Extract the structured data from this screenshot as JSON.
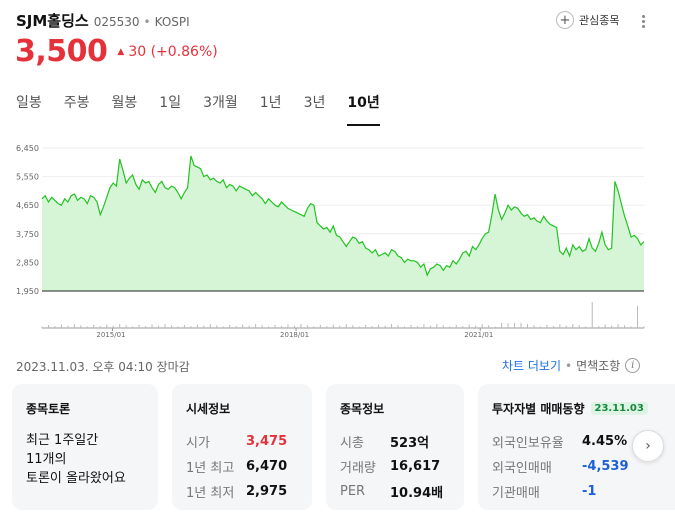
{
  "header": {
    "stock_name": "SJM홀딩스",
    "stock_code": "025530",
    "separator": "•",
    "market": "KOSPI",
    "watch_label": "관심종목"
  },
  "price": {
    "current": "3,500",
    "change_text": "30 (+0.86%)",
    "up_color": "#e5323a"
  },
  "tabs": [
    {
      "label": "일봉",
      "active": false
    },
    {
      "label": "주봉",
      "active": false
    },
    {
      "label": "월봉",
      "active": false
    },
    {
      "label": "1일",
      "active": false
    },
    {
      "label": "3개월",
      "active": false
    },
    {
      "label": "1년",
      "active": false
    },
    {
      "label": "3년",
      "active": false
    },
    {
      "label": "10년",
      "active": true
    }
  ],
  "chart_data": {
    "type": "area",
    "y_ticks": [
      "6,450",
      "5,550",
      "4,650",
      "3,750",
      "2,850",
      "1,950"
    ],
    "y_tick_values": [
      6450,
      5550,
      4650,
      3750,
      2850,
      1950
    ],
    "ylim": [
      1950,
      6450
    ],
    "x_ticks": [
      "2015/01",
      "2018/01",
      "2021/01"
    ],
    "x_tick_positions": [
      0.117,
      0.422,
      0.728
    ],
    "line_color": "#22c322",
    "fill_color": "#d6f5d6",
    "values": [
      4850,
      4950,
      4750,
      4900,
      4800,
      4700,
      4650,
      4850,
      4750,
      4950,
      5000,
      4800,
      4900,
      4850,
      4700,
      4950,
      4900,
      4750,
      4350,
      4600,
      4900,
      5200,
      5350,
      5250,
      6100,
      5750,
      5350,
      5500,
      5600,
      5300,
      5150,
      5450,
      5350,
      5400,
      5200,
      5050,
      5300,
      5400,
      5200,
      5150,
      5250,
      5200,
      5050,
      4850,
      5050,
      5200,
      6200,
      5900,
      5850,
      5800,
      5550,
      5600,
      5450,
      5500,
      5400,
      5350,
      5450,
      5200,
      5300,
      5250,
      5100,
      5250,
      5200,
      5150,
      5100,
      4950,
      5050,
      4950,
      4850,
      4700,
      4850,
      4750,
      4650,
      4600,
      4750,
      4650,
      4550,
      4500,
      4450,
      4400,
      4350,
      4300,
      4550,
      4700,
      4650,
      4100,
      4000,
      3900,
      3950,
      3800,
      4000,
      3700,
      3650,
      3500,
      3350,
      3500,
      3650,
      3600,
      3450,
      3500,
      3300,
      3250,
      3150,
      3250,
      3050,
      3100,
      3150,
      3050,
      3250,
      3200,
      3050,
      3000,
      2850,
      2950,
      2900,
      2900,
      2850,
      2700,
      2800,
      2450,
      2650,
      2700,
      2800,
      2750,
      2600,
      2750,
      2700,
      2900,
      2800,
      2950,
      3150,
      3200,
      3050,
      3350,
      3250,
      3400,
      3600,
      3750,
      3800,
      4350,
      5000,
      4500,
      4200,
      4400,
      4650,
      4500,
      4600,
      4550,
      4400,
      4300,
      4350,
      4200,
      4250,
      4150,
      4100,
      4300,
      4150,
      4050,
      4000,
      3950,
      3200,
      3100,
      3300,
      3050,
      3400,
      3250,
      3350,
      3200,
      3250,
      3600,
      3300,
      3200,
      3450,
      3800,
      3400,
      3250,
      3300,
      5400,
      5100,
      4700,
      4300,
      4000,
      3650,
      3700,
      3600,
      3400,
      3500
    ]
  },
  "date_line": "2023.11.03. 오후 04:10 장마감",
  "links": {
    "chart_more": "차트 더보기",
    "disclaimer": "면책조항"
  },
  "cards": {
    "talk": {
      "title": "종목토론",
      "line1": "최근 1주일간",
      "line2": "11개의",
      "line3": "토론이 올라왔어요"
    },
    "quote": {
      "title": "시세정보",
      "rows": [
        {
          "key": "시가",
          "val": "3,475"
        },
        {
          "key": "1년 최고",
          "val": "6,470"
        },
        {
          "key": "1년 최저",
          "val": "2,975"
        }
      ]
    },
    "info": {
      "title": "종목정보",
      "rows": [
        {
          "key": "시총",
          "val": "523억"
        },
        {
          "key": "거래량",
          "val": "16,617"
        },
        {
          "key": "PER",
          "val": "10.94배"
        }
      ]
    },
    "investor": {
      "title": "투자자별 매매동향",
      "badge": "23.11.03",
      "rows": [
        {
          "key": "외국인보유율",
          "val": "4.45%"
        },
        {
          "key": "외국인매매",
          "val": "-4,539"
        },
        {
          "key": "기관매매",
          "val": "-1"
        }
      ]
    }
  }
}
